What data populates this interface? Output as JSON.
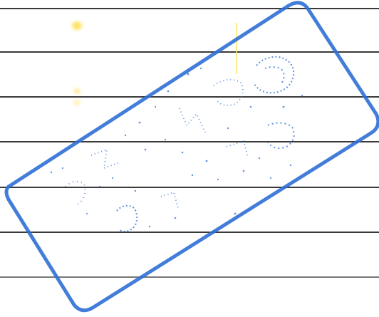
{
  "colors": {
    "background": "#ffffff",
    "ruled_line": "#3a3a3a",
    "stamp_ink": "#2f6fd6",
    "highlighter": "#ffe36a"
  },
  "stamp": {
    "icon": "rubber-stamp-icon",
    "shape": "rotated rounded rectangle",
    "illegible_text": ""
  }
}
